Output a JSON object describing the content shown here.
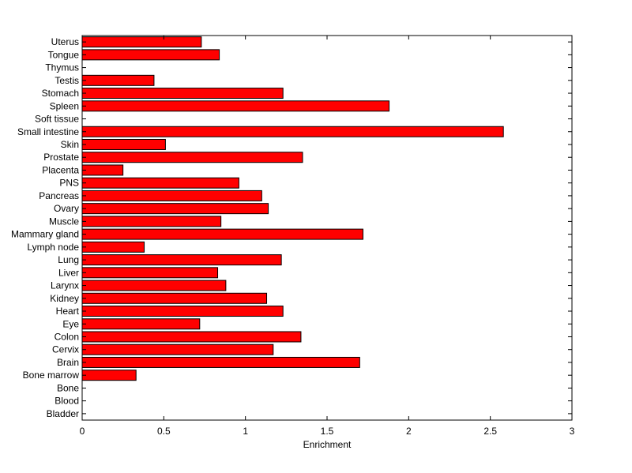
{
  "chart_data": {
    "type": "bar",
    "orientation": "horizontal",
    "title": "",
    "xlabel": "Enrichment",
    "ylabel": "",
    "xlim": [
      0,
      3
    ],
    "xticks": [
      "0",
      "0.5",
      "1",
      "1.5",
      "2",
      "2.5",
      "3"
    ],
    "xtick_values": [
      0,
      0.5,
      1,
      1.5,
      2,
      2.5,
      3
    ],
    "grid": false,
    "legend": "none",
    "bar_color": "#ff0000",
    "bar_edge_color": "#000000",
    "categories": [
      "Bladder",
      "Blood",
      "Bone",
      "Bone marrow",
      "Brain",
      "Cervix",
      "Colon",
      "Eye",
      "Heart",
      "Kidney",
      "Larynx",
      "Liver",
      "Lung",
      "Lymph node",
      "Mammary gland",
      "Muscle",
      "Ovary",
      "Pancreas",
      "PNS",
      "Placenta",
      "Prostate",
      "Skin",
      "Small intestine",
      "Soft tissue",
      "Spleen",
      "Stomach",
      "Testis",
      "Thymus",
      "Tongue",
      "Uterus"
    ],
    "values": [
      0,
      0,
      0,
      0.33,
      1.7,
      1.17,
      1.34,
      0.72,
      1.23,
      1.13,
      0.88,
      0.83,
      1.22,
      0.38,
      1.72,
      0.85,
      1.14,
      1.1,
      0.96,
      0.25,
      1.35,
      0.51,
      2.58,
      0,
      1.88,
      1.23,
      0.44,
      0,
      0.84,
      0.73
    ]
  }
}
